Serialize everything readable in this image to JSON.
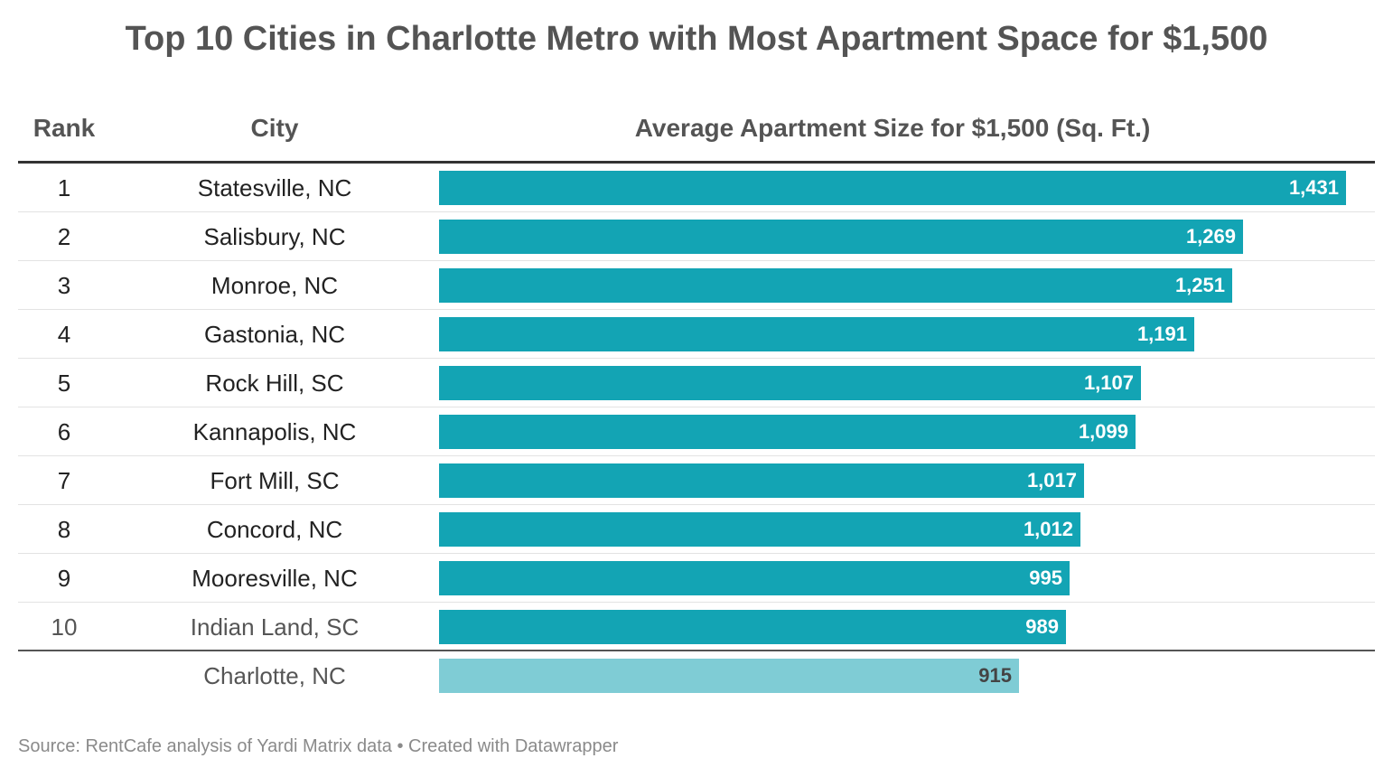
{
  "title": "Top 10 Cities in Charlotte Metro with Most Apartment Space for $1,500",
  "headers": {
    "rank": "Rank",
    "city": "City",
    "value": "Average Apartment Size for $1,500 (Sq. Ft.)"
  },
  "colors": {
    "bar": "#13a4b4",
    "bar_reference": "#7fccd5"
  },
  "chart_data": {
    "type": "bar",
    "orientation": "horizontal",
    "title": "Top 10 Cities in Charlotte Metro with Most Apartment Space for $1,500",
    "xlabel": "Average Apartment Size for $1,500 (Sq. Ft.)",
    "ylabel": "City",
    "xlim": [
      0,
      1431
    ],
    "rows": [
      {
        "rank": "1",
        "city": "Statesville, NC",
        "value": 1431,
        "label": "1,431",
        "reference": false
      },
      {
        "rank": "2",
        "city": "Salisbury, NC",
        "value": 1269,
        "label": "1,269",
        "reference": false
      },
      {
        "rank": "3",
        "city": "Monroe, NC",
        "value": 1251,
        "label": "1,251",
        "reference": false
      },
      {
        "rank": "4",
        "city": "Gastonia, NC",
        "value": 1191,
        "label": "1,191",
        "reference": false
      },
      {
        "rank": "5",
        "city": "Rock Hill, SC",
        "value": 1107,
        "label": "1,107",
        "reference": false
      },
      {
        "rank": "6",
        "city": "Kannapolis, NC",
        "value": 1099,
        "label": "1,099",
        "reference": false
      },
      {
        "rank": "7",
        "city": "Fort Mill, SC",
        "value": 1017,
        "label": "1,017",
        "reference": false
      },
      {
        "rank": "8",
        "city": "Concord, NC",
        "value": 1012,
        "label": "1,012",
        "reference": false
      },
      {
        "rank": "9",
        "city": "Mooresville, NC",
        "value": 995,
        "label": "995",
        "reference": false
      },
      {
        "rank": "10",
        "city": "Indian Land, SC",
        "value": 989,
        "label": "989",
        "reference": false
      },
      {
        "rank": "",
        "city": "Charlotte, NC",
        "value": 915,
        "label": "915",
        "reference": true
      }
    ]
  },
  "footer": "Source: RentCafe analysis of Yardi Matrix data • Created with Datawrapper"
}
